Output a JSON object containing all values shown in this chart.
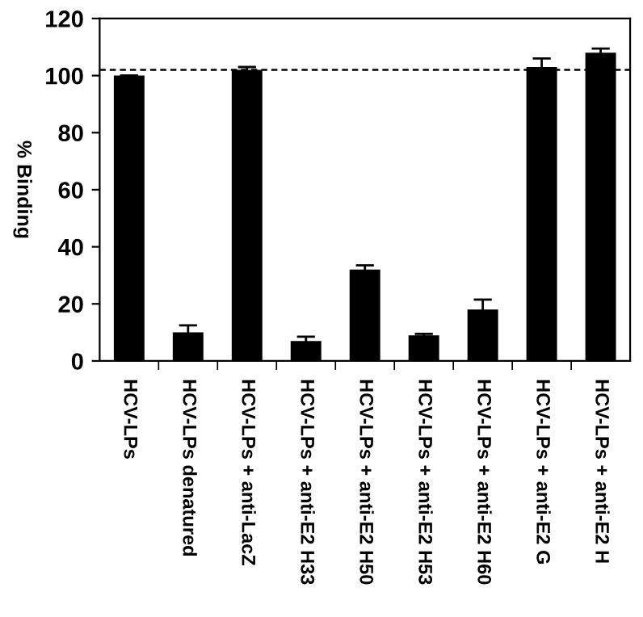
{
  "chart_data": {
    "type": "bar",
    "ylabel": "% Binding",
    "categories": [
      "HCV-LPs",
      "HCV-LPs denatured",
      "HCV-LPs + anti-LacZ",
      "HCV-LPs + anti-E2 H33",
      "HCV-LPs + anti-E2 H50",
      "HCV-LPs + anti-E2 H53",
      "HCV-LPs + anti-E2 H60",
      "HCV-LPs + anti-E2 G",
      "HCV-LPs + anti-E2 H"
    ],
    "values": [
      100,
      10,
      102,
      7,
      32,
      9,
      18,
      103,
      108
    ],
    "errors": [
      null,
      2.5,
      1,
      1.5,
      1.5,
      0.5,
      3.5,
      3,
      1.5
    ],
    "color": "#000000",
    "ylim": [
      0,
      120
    ],
    "yticks": [
      0,
      20,
      40,
      60,
      80,
      100,
      120
    ],
    "ref_lines": [
      {
        "axis": "y",
        "value": 102,
        "line_style": "dashed",
        "color": "#000000"
      }
    ],
    "grid": false,
    "legend": false
  }
}
